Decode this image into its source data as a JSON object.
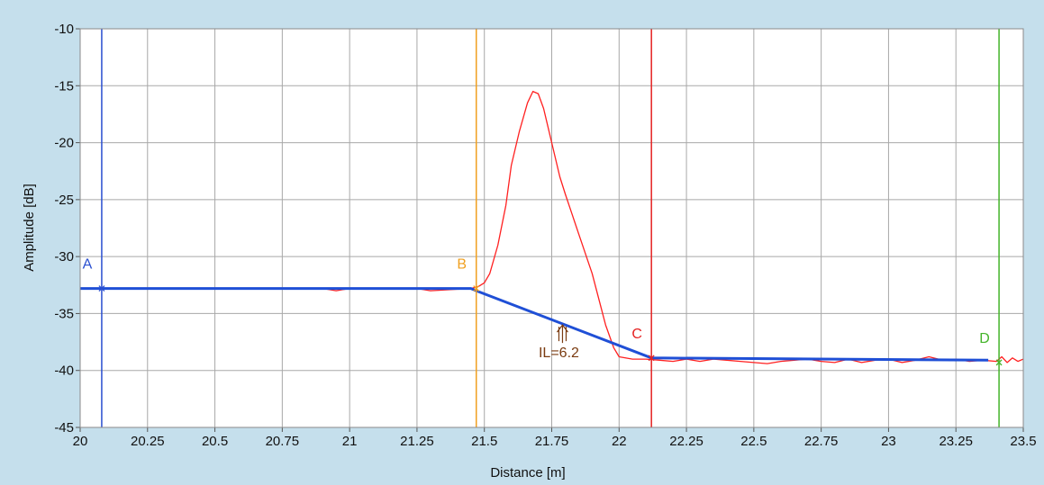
{
  "chart_data": {
    "type": "line",
    "xlabel": "Distance [m]",
    "ylabel": "Amplitude [dB]",
    "xlim": [
      20,
      23.5
    ],
    "ylim": [
      -45,
      -10
    ],
    "x_ticks": [
      20,
      20.25,
      20.5,
      20.75,
      21,
      21.25,
      21.5,
      21.75,
      22,
      22.25,
      22.5,
      22.75,
      23,
      23.25,
      23.5
    ],
    "y_ticks": [
      -10,
      -15,
      -20,
      -25,
      -30,
      -35,
      -40,
      -45
    ],
    "x_tick_labels": [
      "20",
      "20.25",
      "20.5",
      "20.75",
      "21",
      "21.25",
      "21.5",
      "21.75",
      "22",
      "22.25",
      "22.5",
      "22.75",
      "23",
      "23.25",
      "23.5"
    ],
    "y_tick_labels": [
      "-10",
      "-15",
      "-20",
      "-25",
      "-30",
      "-35",
      "-40",
      "-45"
    ],
    "grid": true,
    "colors": {
      "background": "#c5dfec",
      "plot_area": "#ffffff",
      "grid": "#a8a8a8",
      "trace": "#ff2020",
      "fit": "#1f4fd6",
      "annotation": "#7a3b10"
    },
    "series": [
      {
        "color": "#ff2020",
        "x": [
          20.0,
          20.08,
          20.5,
          20.9,
          20.95,
          21.0,
          21.25,
          21.3,
          21.45,
          21.48,
          21.5,
          21.52,
          21.55,
          21.58,
          21.6,
          21.63,
          21.66,
          21.68,
          21.7,
          21.72,
          21.75,
          21.78,
          21.8,
          21.85,
          21.9,
          21.95,
          21.98,
          22.0,
          22.05,
          22.1,
          22.15,
          22.2,
          22.25,
          22.3,
          22.35,
          22.4,
          22.45,
          22.5,
          22.55,
          22.6,
          22.65,
          22.7,
          22.75,
          22.8,
          22.85,
          22.9,
          22.95,
          23.0,
          23.05,
          23.1,
          23.15,
          23.2,
          23.25,
          23.3,
          23.35,
          23.4,
          23.42,
          23.44,
          23.46,
          23.48,
          23.5
        ],
        "y": [
          -32.8,
          -32.8,
          -32.8,
          -32.8,
          -33.0,
          -32.8,
          -32.8,
          -33.0,
          -32.8,
          -32.6,
          -32.3,
          -31.5,
          -29.0,
          -25.5,
          -22.0,
          -19.0,
          -16.5,
          -15.5,
          -15.7,
          -17.0,
          -20.0,
          -23.0,
          -24.5,
          -28.0,
          -31.5,
          -36.0,
          -38.0,
          -38.8,
          -39.0,
          -39.0,
          -39.1,
          -39.2,
          -39.0,
          -39.2,
          -39.0,
          -39.1,
          -39.2,
          -39.3,
          -39.4,
          -39.2,
          -39.1,
          -39.0,
          -39.2,
          -39.3,
          -39.0,
          -39.3,
          -39.1,
          -39.0,
          -39.3,
          -39.1,
          -38.8,
          -39.1,
          -39.0,
          -39.2,
          -39.1,
          -39.2,
          -38.8,
          -39.3,
          -38.9,
          -39.2,
          -39.0
        ]
      },
      {
        "color": "#1f4fd6",
        "x": [
          20.0,
          20.08,
          21.45,
          21.47,
          22.12,
          23.37
        ],
        "y": [
          -32.8,
          -32.8,
          -32.8,
          -33.0,
          -38.9,
          -39.1
        ]
      }
    ],
    "markers": [
      {
        "label": "A",
        "x": 20.08,
        "y": -32.8,
        "color": "#2a4fd0"
      },
      {
        "label": "B",
        "x": 21.47,
        "y": -32.8,
        "color": "#f0a020"
      },
      {
        "label": "C",
        "x": 22.12,
        "y": -38.9,
        "color": "#e52222"
      },
      {
        "label": "D",
        "x": 23.41,
        "y": -39.3,
        "color": "#44b42a"
      }
    ],
    "annotations": [
      {
        "text": "IL=6.2",
        "x": 21.79,
        "y": -36.0,
        "color": "#7a3b10"
      }
    ]
  }
}
